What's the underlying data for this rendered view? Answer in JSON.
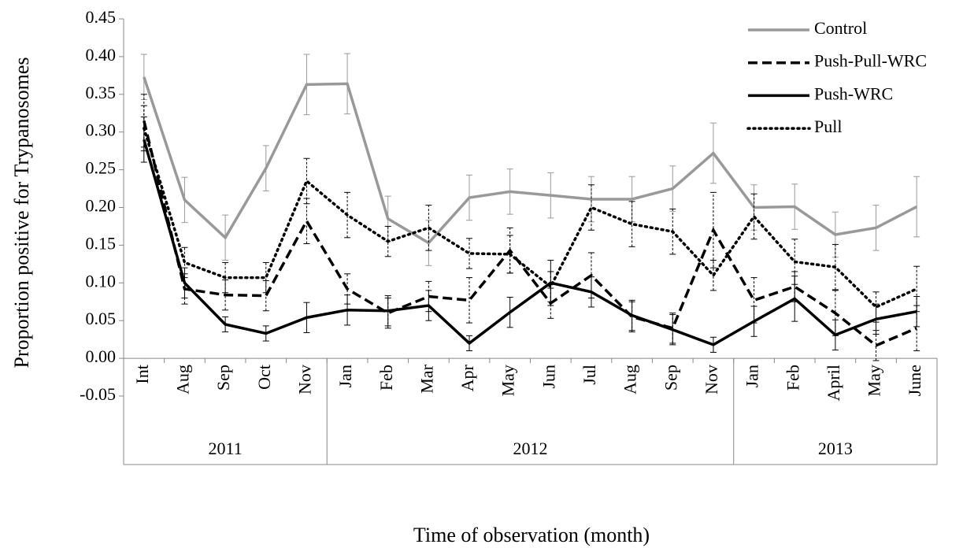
{
  "chart_data": {
    "type": "line",
    "y_label": "Proportion positive for Trypanosomes",
    "x_label": "Time of observation (month)",
    "category_groups": [
      {
        "label": "2011",
        "categories": [
          "Int",
          "Aug",
          "Sep",
          "Oct",
          "Nov"
        ]
      },
      {
        "label": "2012",
        "categories": [
          "Jan",
          "Feb",
          "Mar",
          "Apr",
          "May",
          "Jun",
          "Jul",
          "Aug",
          "Sep",
          "Nov"
        ]
      },
      {
        "label": "2013",
        "categories": [
          "Jan",
          "Feb",
          "April",
          "May",
          "June"
        ]
      }
    ],
    "series": [
      {
        "name": "Control",
        "color": "#999999",
        "style": "solid",
        "values": [
          0.373,
          0.21,
          0.16,
          0.252,
          0.363,
          0.364,
          0.185,
          0.153,
          0.213,
          0.221,
          0.216,
          0.211,
          0.211,
          0.225,
          0.272,
          0.2,
          0.201,
          0.164,
          0.173,
          0.201
        ],
        "errors": [
          0.03,
          0.03,
          0.03,
          0.03,
          0.04,
          0.04,
          0.03,
          0.03,
          0.03,
          0.03,
          0.03,
          0.03,
          0.03,
          0.03,
          0.04,
          0.03,
          0.03,
          0.03,
          0.03,
          0.04
        ]
      },
      {
        "name": "Push-Pull-WRC",
        "color": "#000000",
        "style": "dashed",
        "values": [
          0.315,
          0.092,
          0.084,
          0.083,
          0.182,
          0.092,
          0.06,
          0.082,
          0.077,
          0.143,
          0.073,
          0.11,
          0.055,
          0.04,
          0.17,
          0.077,
          0.095,
          0.06,
          0.017,
          0.04
        ],
        "errors": [
          0.035,
          0.02,
          0.02,
          0.02,
          0.03,
          0.02,
          0.02,
          0.02,
          0.03,
          0.03,
          0.02,
          0.03,
          0.02,
          0.02,
          0.05,
          0.03,
          0.02,
          0.03,
          0.02,
          0.03
        ]
      },
      {
        "name": "Push-WRC",
        "color": "#000000",
        "style": "solid",
        "values": [
          0.29,
          0.1,
          0.045,
          0.033,
          0.054,
          0.064,
          0.063,
          0.07,
          0.02,
          0.061,
          0.1,
          0.088,
          0.057,
          0.038,
          0.018,
          0.049,
          0.079,
          0.031,
          0.052,
          0.062
        ],
        "errors": [
          0.03,
          0.02,
          0.01,
          0.01,
          0.02,
          0.02,
          0.02,
          0.02,
          0.01,
          0.02,
          0.03,
          0.02,
          0.02,
          0.02,
          0.01,
          0.02,
          0.03,
          0.02,
          0.02,
          0.02
        ]
      },
      {
        "name": "Pull",
        "color": "#000000",
        "style": "dotted",
        "values": [
          0.305,
          0.127,
          0.107,
          0.107,
          0.235,
          0.19,
          0.155,
          0.173,
          0.139,
          0.138,
          0.095,
          0.2,
          0.178,
          0.168,
          0.11,
          0.188,
          0.128,
          0.121,
          0.068,
          0.092
        ],
        "errors": [
          0.03,
          0.02,
          0.02,
          0.02,
          0.03,
          0.03,
          0.02,
          0.03,
          0.02,
          0.025,
          0.02,
          0.03,
          0.03,
          0.03,
          0.02,
          0.03,
          0.03,
          0.03,
          0.02,
          0.03
        ]
      }
    ],
    "ylim": [
      -0.05,
      0.45
    ],
    "yticks": [
      -0.05,
      {
        "value": 0,
        "label": "0.00"
      },
      0.05,
      {
        "value": 0.1,
        "label": "0.10"
      },
      0.15,
      {
        "value": 0.2,
        "label": "0.20"
      },
      0.25,
      {
        "value": 0.3,
        "label": "0.30"
      },
      0.35,
      {
        "value": 0.4,
        "label": "0.40"
      },
      0.45
    ],
    "legend": "top-right"
  }
}
